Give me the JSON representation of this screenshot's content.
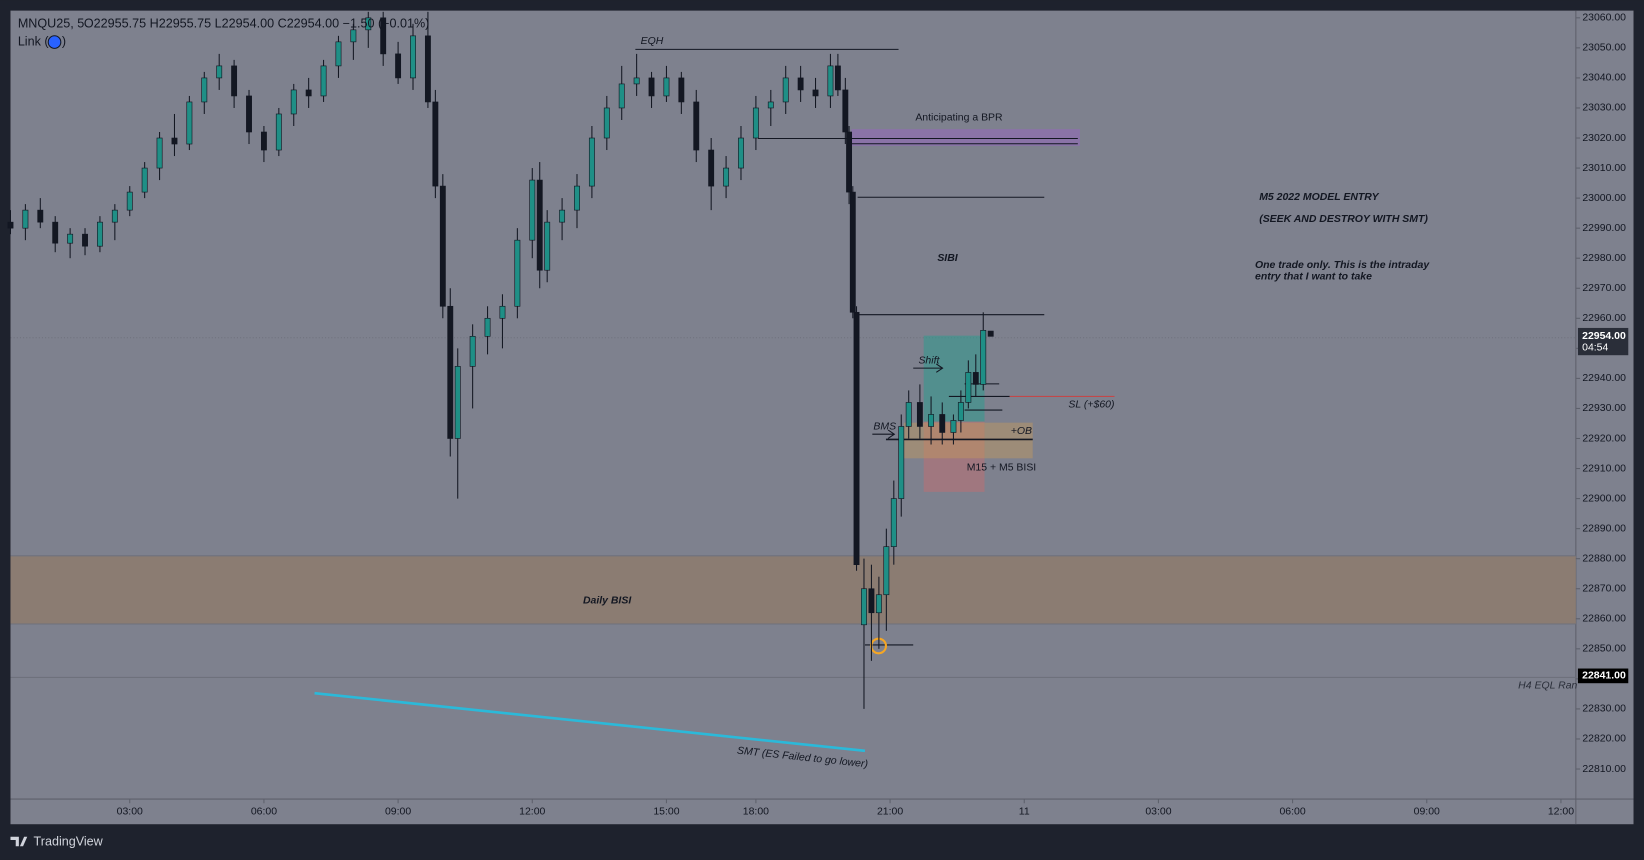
{
  "chart_data": {
    "type": "candlestick",
    "symbol": "MNQU25, 5",
    "ohlc_legend": "O22955.75  H22955.75  L22954.00  C22954.00  −1.50 (−0.01%)",
    "link_open": "Link (",
    "link_close": ")",
    "up_color": "#1f8f86",
    "down_color": "#131722",
    "x": [
      0,
      4,
      8,
      12,
      16,
      20,
      24,
      28,
      32,
      36,
      40,
      44,
      48,
      52,
      56,
      60,
      64,
      68,
      72,
      76,
      80,
      84,
      88,
      92,
      96,
      100,
      104,
      108,
      112,
      114,
      116,
      118,
      120,
      124,
      128,
      132,
      136,
      140,
      142,
      144,
      148,
      152,
      156,
      160,
      164,
      168,
      172,
      176,
      180,
      184,
      188,
      192,
      196,
      200,
      204,
      208,
      212,
      216,
      220,
      222,
      224,
      225,
      226,
      227,
      229,
      231,
      233,
      235,
      237,
      239,
      241,
      244,
      247,
      250,
      253,
      255,
      257,
      259,
      261,
      263
    ],
    "open": [
      22992,
      22990,
      22996,
      22992,
      22985,
      22988,
      22984,
      22992,
      22996,
      23002,
      23010,
      23020,
      23018,
      23032,
      23040,
      23044,
      23034,
      23022,
      23016,
      23028,
      23036,
      23034,
      23044,
      23052,
      23056,
      23060,
      23048,
      23040,
      23054,
      23032,
      23004,
      22964,
      22920,
      22944,
      22954,
      22960,
      22964,
      22986,
      23006,
      22976,
      22992,
      22996,
      23004,
      23020,
      23030,
      23038,
      23040,
      23034,
      23040,
      23032,
      23016,
      23004,
      23010,
      23020,
      23030,
      23032,
      23040,
      23036,
      23034,
      23044,
      23036,
      23022,
      23002,
      22962,
      22858,
      22870,
      22862,
      22868,
      22884,
      22900,
      22924,
      22932,
      22924,
      22928,
      22922,
      22926,
      22932,
      22942,
      22938,
      22955.75
    ],
    "high": [
      22996,
      22998,
      23000,
      22994,
      22990,
      22990,
      22994,
      22998,
      23004,
      23012,
      23022,
      23028,
      23034,
      23042,
      23048,
      23046,
      23036,
      23024,
      23030,
      23038,
      23040,
      23046,
      23054,
      23058,
      23062,
      23062,
      23052,
      23058,
      23062,
      23036,
      23008,
      22970,
      22950,
      22958,
      22964,
      22968,
      22990,
      23010,
      23012,
      22996,
      23000,
      23008,
      23024,
      23034,
      23044,
      23048,
      23042,
      23044,
      23042,
      23036,
      23020,
      23014,
      23024,
      23034,
      23036,
      23044,
      23044,
      23040,
      23048,
      23048,
      23040,
      23024,
      23004,
      22964,
      22880,
      22878,
      22874,
      22890,
      22906,
      22928,
      22936,
      22938,
      22934,
      22932,
      22928,
      22936,
      22946,
      22948,
      22962,
      22955.75
    ],
    "low": [
      22988,
      22986,
      22990,
      22982,
      22980,
      22981,
      22982,
      22986,
      22994,
      23000,
      23006,
      23014,
      23016,
      23028,
      23036,
      23030,
      23018,
      23012,
      23014,
      23024,
      23030,
      23032,
      23040,
      23046,
      23050,
      23044,
      23038,
      23036,
      23030,
      23000,
      22960,
      22914,
      22900,
      22930,
      22948,
      22950,
      22960,
      22980,
      22970,
      22972,
      22986,
      22990,
      23000,
      23016,
      23026,
      23034,
      23030,
      23032,
      23028,
      23012,
      22996,
      23000,
      23006,
      23016,
      23024,
      23028,
      23032,
      23030,
      23030,
      23034,
      23018,
      22998,
      22960,
      22876,
      22830,
      22846,
      22850,
      22856,
      22878,
      22894,
      22920,
      22920,
      22918,
      22918,
      22918,
      22922,
      22930,
      22934,
      22936,
      22954
    ],
    "close": [
      22990,
      22996,
      22992,
      22985,
      22988,
      22984,
      22992,
      22996,
      23002,
      23010,
      23020,
      23018,
      23032,
      23040,
      23044,
      23034,
      23022,
      23016,
      23028,
      23036,
      23034,
      23044,
      23052,
      23056,
      23060,
      23048,
      23040,
      23054,
      23032,
      23004,
      22964,
      22920,
      22944,
      22954,
      22960,
      22964,
      22986,
      23006,
      22976,
      22992,
      22996,
      23004,
      23020,
      23030,
      23038,
      23040,
      23034,
      23040,
      23032,
      23016,
      23004,
      23010,
      23020,
      23030,
      23032,
      23040,
      23036,
      23034,
      23044,
      23036,
      23022,
      23002,
      22962,
      22878,
      22870,
      22862,
      22868,
      22884,
      22900,
      22924,
      22932,
      22924,
      22928,
      22922,
      22926,
      22932,
      22942,
      22938,
      22956,
      22954
    ],
    "xlim": [
      0,
      420
    ],
    "xticks": [
      {
        "value": 32,
        "label": "03:00"
      },
      {
        "value": 68,
        "label": "06:00"
      },
      {
        "value": 104,
        "label": "09:00"
      },
      {
        "value": 140,
        "label": "12:00"
      },
      {
        "value": 176,
        "label": "15:00"
      },
      {
        "value": 200,
        "label": "18:00"
      },
      {
        "value": 236,
        "label": "21:00"
      },
      {
        "value": 272,
        "label": "11"
      },
      {
        "value": 308,
        "label": "03:00"
      },
      {
        "value": 344,
        "label": "06:00"
      },
      {
        "value": 380,
        "label": "09:00"
      },
      {
        "value": 416,
        "label": "12:00"
      }
    ],
    "ylim": [
      22800,
      23062.4
    ],
    "yticks": [
      {
        "value": 22810,
        "label": "22810.00"
      },
      {
        "value": 22820,
        "label": "22820.00"
      },
      {
        "value": 22830,
        "label": "22830.00"
      },
      {
        "value": 22840,
        "label": "22840.00"
      },
      {
        "value": 22850,
        "label": "22850.00"
      },
      {
        "value": 22860,
        "label": "22860.00"
      },
      {
        "value": 22870,
        "label": "22870.00"
      },
      {
        "value": 22880,
        "label": "22880.00"
      },
      {
        "value": 22890,
        "label": "22890.00"
      },
      {
        "value": 22900,
        "label": "22900.00"
      },
      {
        "value": 22910,
        "label": "22910.00"
      },
      {
        "value": 22920,
        "label": "22920.00"
      },
      {
        "value": 22930,
        "label": "22930.00"
      },
      {
        "value": 22940,
        "label": "22940.00"
      },
      {
        "value": 22950,
        "label": "22950.00"
      },
      {
        "value": 22960,
        "label": "22960.00"
      },
      {
        "value": 22970,
        "label": "22970.00"
      },
      {
        "value": 22980,
        "label": "22980.00"
      },
      {
        "value": 22990,
        "label": "22990.00"
      },
      {
        "value": 23000,
        "label": "23000.00"
      },
      {
        "value": 23010,
        "label": "23010.00"
      },
      {
        "value": 23020,
        "label": "23020.00"
      },
      {
        "value": 23030,
        "label": "23030.00"
      },
      {
        "value": 23040,
        "label": "23040.00"
      },
      {
        "value": 23050,
        "label": "23050.00"
      },
      {
        "value": 23060,
        "label": "23060.00"
      }
    ],
    "last_price": {
      "value": 22954,
      "label": "22954.00"
    },
    "countdown": "04:54",
    "marked_price": {
      "value": 22841,
      "label": "22841.00"
    },
    "annotations": [
      "EQH",
      "Anticipating a BPR",
      "SIBI",
      "M5 2022 MODEL ENTRY",
      "(SEEK AND DESTROY WITH SMT)",
      "One trade only. This is the intraday",
      "entry that I want to take",
      "Shift",
      "BMS",
      "+OB",
      "SL (+$60)",
      "M15 + M5 BISI",
      "Daily BISI",
      "H4 EQL Ran",
      "SMT (ES Failed to go lower)"
    ],
    "brand": "TradingView"
  }
}
